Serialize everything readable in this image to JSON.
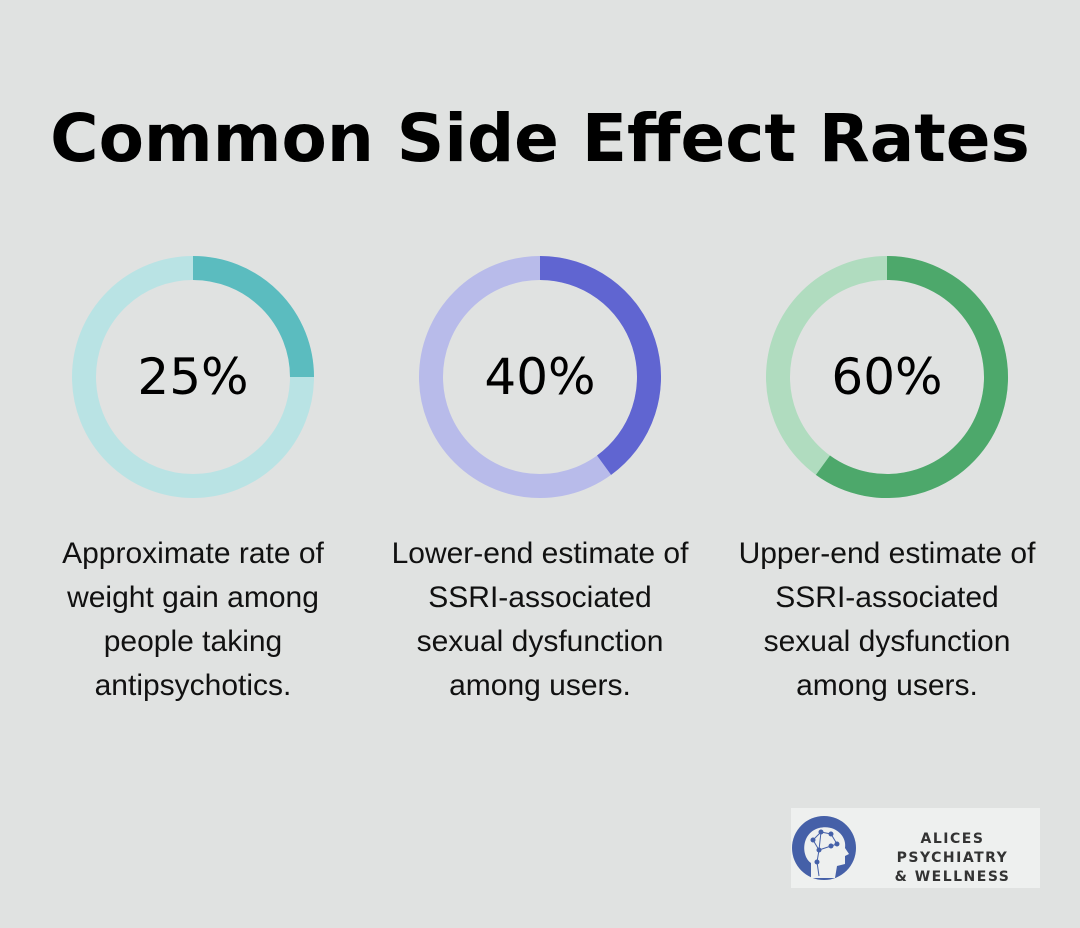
{
  "chart_data": [
    {
      "type": "pie",
      "variant": "donut",
      "value": 25,
      "label": "25%",
      "description": "Approximate rate of weight gain among people taking antipsychotics.",
      "colors": {
        "fill": "#5bbcbf",
        "track": "#b9e3e4"
      }
    },
    {
      "type": "pie",
      "variant": "donut",
      "value": 40,
      "label": "40%",
      "description": "Lower-end estimate of SSRI-associated sexual dysfunction among users.",
      "colors": {
        "fill": "#6065d1",
        "track": "#b8bbea"
      }
    },
    {
      "type": "pie",
      "variant": "donut",
      "value": 60,
      "label": "60%",
      "description": "Upper-end estimate of SSRI-associated sexual dysfunction among users.",
      "colors": {
        "fill": "#4da86b",
        "track": "#b0dcbf"
      }
    }
  ],
  "title": "Common Side Effect Rates",
  "logo": {
    "line1": "ALICES PSYCHIATRY",
    "line2": "& WELLNESS",
    "color": "#4560a8"
  }
}
